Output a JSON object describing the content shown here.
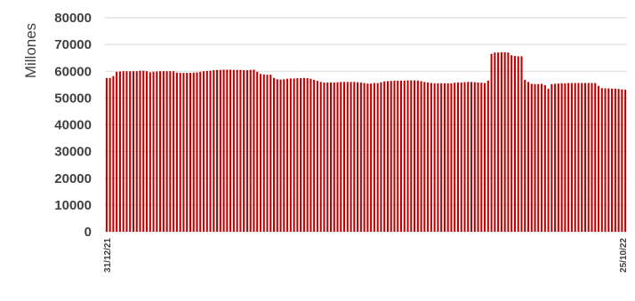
{
  "chart_data": {
    "type": "bar",
    "ylabel": "Millones",
    "ylim": [
      0,
      80000
    ],
    "yticks": [
      "0",
      "10000",
      "20000",
      "30000",
      "40000",
      "50000",
      "60000",
      "70000",
      "80000"
    ],
    "grid": true,
    "legend": "none",
    "x_first": "31/12/21",
    "x_last": "25/10/22",
    "color": "#c00000",
    "values": [
      57500,
      57500,
      58200,
      59800,
      59900,
      60000,
      60000,
      60000,
      60000,
      60000,
      60200,
      60200,
      60000,
      59600,
      59800,
      59900,
      60000,
      60000,
      60000,
      60000,
      60000,
      59500,
      59400,
      59400,
      59400,
      59400,
      59500,
      59600,
      59800,
      60000,
      60100,
      60200,
      60400,
      60500,
      60500,
      60600,
      60600,
      60600,
      60500,
      60500,
      60500,
      60400,
      60400,
      60500,
      60600,
      59800,
      59000,
      58800,
      58700,
      58700,
      57500,
      57000,
      56900,
      57000,
      57200,
      57300,
      57300,
      57400,
      57400,
      57500,
      57400,
      57200,
      56800,
      56400,
      56000,
      55800,
      55800,
      55800,
      55800,
      55900,
      56000,
      56000,
      56000,
      56000,
      56000,
      55900,
      55800,
      55600,
      55400,
      55400,
      55600,
      55600,
      55900,
      56200,
      56300,
      56400,
      56500,
      56500,
      56500,
      56500,
      56600,
      56600,
      56600,
      56500,
      56300,
      56000,
      55800,
      55600,
      55500,
      55500,
      55500,
      55500,
      55500,
      55500,
      55700,
      55800,
      55800,
      55900,
      56000,
      56000,
      55900,
      55800,
      55700,
      55600,
      56500,
      66500,
      67000,
      67000,
      67100,
      67100,
      67000,
      66000,
      65700,
      65600,
      65600,
      56800,
      56000,
      55300,
      55200,
      55200,
      55300,
      54800,
      53500,
      55200,
      55300,
      55400,
      55500,
      55500,
      55600,
      55600,
      55600,
      55600,
      55600,
      55600,
      55600,
      55600,
      55600,
      54500,
      53700,
      53600,
      53600,
      53500,
      53500,
      53400,
      53200,
      53100
    ]
  }
}
